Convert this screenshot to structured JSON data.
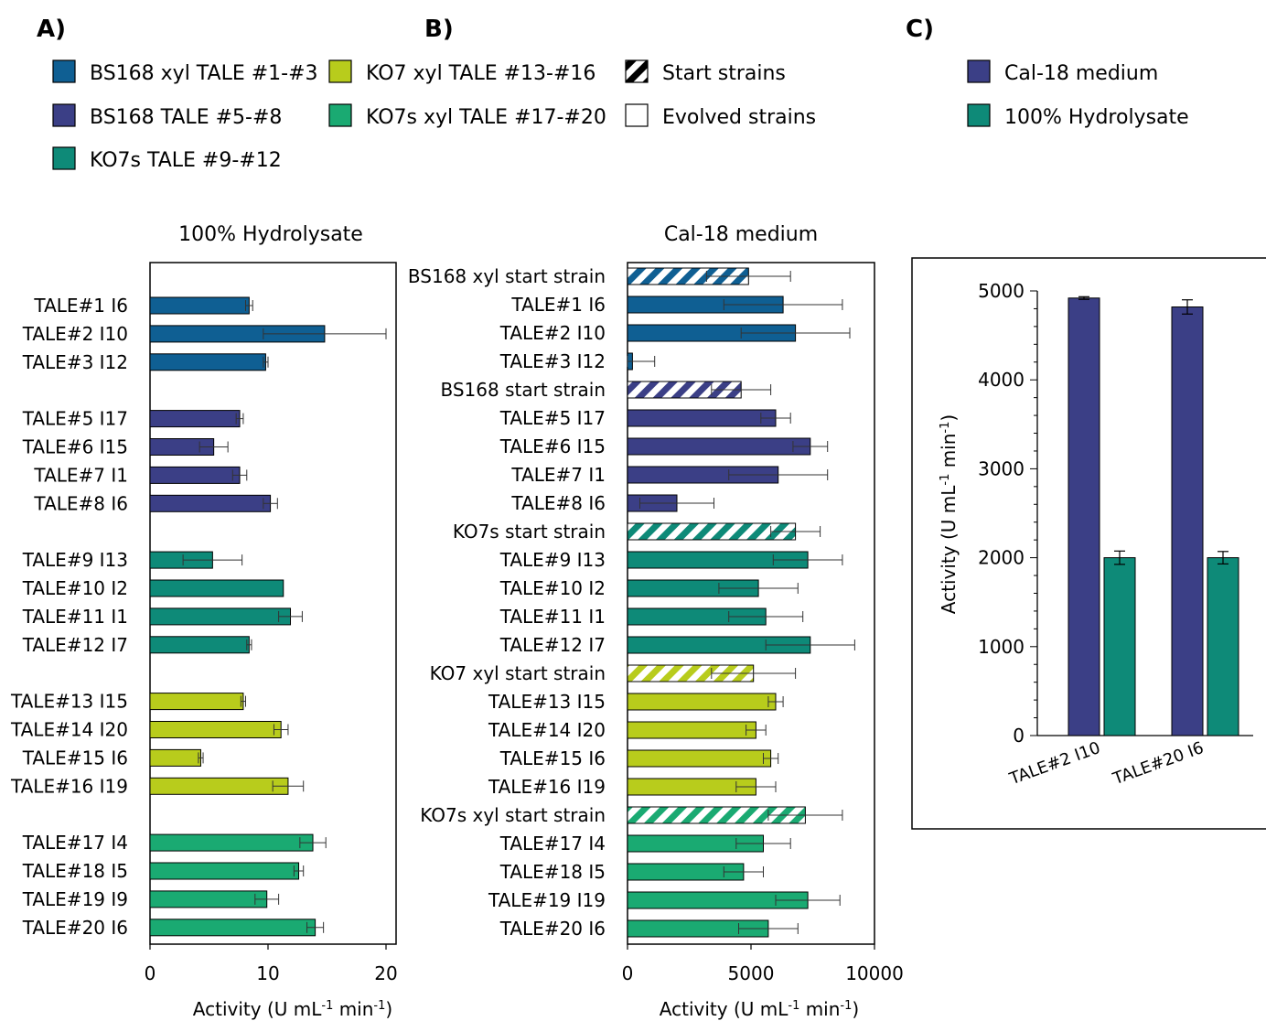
{
  "panel_labels": [
    "A)",
    "B)",
    "C)"
  ],
  "colors": {
    "bs168xyl": "#0f5f93",
    "bs168": "#3b3f86",
    "ko7s": "#0e8a78",
    "ko7xyl": "#b8cc1c",
    "ko7sxyl": "#1aaa72",
    "cal18": "#3b3f86",
    "hydrolysate": "#0e8a78"
  },
  "legend_a": [
    {
      "label": "BS168 xyl TALE #1-#3",
      "color": "#0f5f93",
      "pattern": "solid"
    },
    {
      "label": "BS168 TALE #5-#8",
      "color": "#3b3f86",
      "pattern": "solid"
    },
    {
      "label": "KO7s TALE #9-#12",
      "color": "#0e8a78",
      "pattern": "solid"
    },
    {
      "label": "KO7 xyl TALE #13-#16",
      "color": "#b8cc1c",
      "pattern": "solid"
    },
    {
      "label": "KO7s xyl TALE #17-#20",
      "color": "#1aaa72",
      "pattern": "solid"
    },
    {
      "label": "Start strains",
      "color": "#000000",
      "pattern": "hatch"
    },
    {
      "label": "Evolved strains",
      "color": "#ffffff",
      "pattern": "empty"
    }
  ],
  "legend_c": [
    {
      "label": "Cal-18 medium",
      "color": "#3b3f86"
    },
    {
      "label": "100% Hydrolysate",
      "color": "#0e8a78"
    }
  ],
  "chart_data": [
    {
      "type": "bar",
      "orientation": "horizontal",
      "title": "100% Hydrolysate",
      "xlabel": "Activity (U mL-1 min-1)",
      "xlim": [
        0,
        20
      ],
      "xticks": [
        0,
        10,
        20
      ],
      "grid": false,
      "rows": [
        {
          "label": "TALE#1 I6",
          "value": 8.4,
          "error": 0.3,
          "group": "bs168xyl"
        },
        {
          "label": "TALE#2 I10",
          "value": 14.8,
          "error": 5.2,
          "group": "bs168xyl"
        },
        {
          "label": "TALE#3 I12",
          "value": 9.8,
          "error": 0.2,
          "group": "bs168xyl"
        },
        {
          "label": "TALE#5 I17",
          "value": 7.6,
          "error": 0.3,
          "group": "bs168"
        },
        {
          "label": "TALE#6 I15",
          "value": 5.4,
          "error": 1.2,
          "group": "bs168"
        },
        {
          "label": "TALE#7 I1",
          "value": 7.6,
          "error": 0.6,
          "group": "bs168"
        },
        {
          "label": "TALE#8 I6",
          "value": 10.2,
          "error": 0.6,
          "group": "bs168"
        },
        {
          "label": "TALE#9 I13",
          "value": 5.3,
          "error": 2.5,
          "group": "ko7s"
        },
        {
          "label": "TALE#10 I2",
          "value": 11.3,
          "error": 0,
          "group": "ko7s"
        },
        {
          "label": "TALE#11 I1",
          "value": 11.9,
          "error": 1.0,
          "group": "ko7s"
        },
        {
          "label": "TALE#12 I7",
          "value": 8.4,
          "error": 0.2,
          "group": "ko7s"
        },
        {
          "label": "TALE#13 I15",
          "value": 7.9,
          "error": 0.2,
          "group": "ko7xyl"
        },
        {
          "label": "TALE#14 I20",
          "value": 11.1,
          "error": 0.6,
          "group": "ko7xyl"
        },
        {
          "label": "TALE#15 I6",
          "value": 4.3,
          "error": 0.2,
          "group": "ko7xyl"
        },
        {
          "label": "TALE#16 I19",
          "value": 11.7,
          "error": 1.3,
          "group": "ko7xyl"
        },
        {
          "label": "TALE#17 I4",
          "value": 13.8,
          "error": 1.1,
          "group": "ko7sxyl"
        },
        {
          "label": "TALE#18 I5",
          "value": 12.6,
          "error": 0.4,
          "group": "ko7sxyl"
        },
        {
          "label": "TALE#19 I9",
          "value": 9.9,
          "error": 1.0,
          "group": "ko7sxyl"
        },
        {
          "label": "TALE#20 I6",
          "value": 14.0,
          "error": 0.7,
          "group": "ko7sxyl"
        }
      ]
    },
    {
      "type": "bar",
      "orientation": "horizontal",
      "title": "Cal-18 medium",
      "xlabel": "Activity (U mL-1 min-1)",
      "xlim": [
        0,
        10000
      ],
      "xticks": [
        0,
        5000,
        10000
      ],
      "grid": false,
      "rows": [
        {
          "label": "BS168 xyl start strain",
          "value": 4900,
          "error": 1700,
          "group": "bs168xyl",
          "start": true
        },
        {
          "label": "TALE#1 I6",
          "value": 6300,
          "error": 2400,
          "group": "bs168xyl"
        },
        {
          "label": "TALE#2 I10",
          "value": 6800,
          "error": 2200,
          "group": "bs168xyl"
        },
        {
          "label": "TALE#3 I12",
          "value": 200,
          "error": 900,
          "group": "bs168xyl"
        },
        {
          "label": "BS168 start strain",
          "value": 4600,
          "error": 1200,
          "group": "bs168",
          "start": true
        },
        {
          "label": "TALE#5 I17",
          "value": 6000,
          "error": 600,
          "group": "bs168"
        },
        {
          "label": "TALE#6 I15",
          "value": 7400,
          "error": 700,
          "group": "bs168"
        },
        {
          "label": "TALE#7 I1",
          "value": 6100,
          "error": 2000,
          "group": "bs168"
        },
        {
          "label": "TALE#8 I6",
          "value": 2000,
          "error": 1500,
          "group": "bs168"
        },
        {
          "label": "KO7s start strain",
          "value": 6800,
          "error": 1000,
          "group": "ko7s",
          "start": true
        },
        {
          "label": "TALE#9 I13",
          "value": 7300,
          "error": 1400,
          "group": "ko7s"
        },
        {
          "label": "TALE#10 I2",
          "value": 5300,
          "error": 1600,
          "group": "ko7s"
        },
        {
          "label": "TALE#11 I1",
          "value": 5600,
          "error": 1500,
          "group": "ko7s"
        },
        {
          "label": "TALE#12 I7",
          "value": 7400,
          "error": 1800,
          "group": "ko7s"
        },
        {
          "label": "KO7 xyl start strain",
          "value": 5100,
          "error": 1700,
          "group": "ko7xyl",
          "start": true
        },
        {
          "label": "TALE#13 I15",
          "value": 6000,
          "error": 300,
          "group": "ko7xyl"
        },
        {
          "label": "TALE#14 I20",
          "value": 5200,
          "error": 400,
          "group": "ko7xyl"
        },
        {
          "label": "TALE#15 I6",
          "value": 5800,
          "error": 300,
          "group": "ko7xyl"
        },
        {
          "label": "TALE#16 I19",
          "value": 5200,
          "error": 800,
          "group": "ko7xyl"
        },
        {
          "label": "KO7s xyl start strain",
          "value": 7200,
          "error": 1500,
          "group": "ko7sxyl",
          "start": true
        },
        {
          "label": "TALE#17 I4",
          "value": 5500,
          "error": 1100,
          "group": "ko7sxyl"
        },
        {
          "label": "TALE#18 I5",
          "value": 4700,
          "error": 800,
          "group": "ko7sxyl"
        },
        {
          "label": "TALE#19 I19",
          "value": 7300,
          "error": 1300,
          "group": "ko7sxyl"
        },
        {
          "label": "TALE#20 I6",
          "value": 5700,
          "error": 1200,
          "group": "ko7sxyl"
        }
      ]
    },
    {
      "type": "bar",
      "orientation": "vertical",
      "ylabel": "Activity (U mL-1 min-1)",
      "ylim": [
        0,
        5000
      ],
      "yticks": [
        0,
        1000,
        2000,
        3000,
        4000,
        5000
      ],
      "grid": false,
      "categories": [
        "TALE#2 I10",
        "TALE#20 I6"
      ],
      "series": [
        {
          "name": "Cal-18 medium",
          "values": [
            4920,
            4820
          ],
          "errors": [
            15,
            80
          ]
        },
        {
          "name": "100% Hydrolysate",
          "values": [
            2000,
            2000
          ],
          "errors": [
            75,
            70
          ]
        }
      ]
    }
  ]
}
